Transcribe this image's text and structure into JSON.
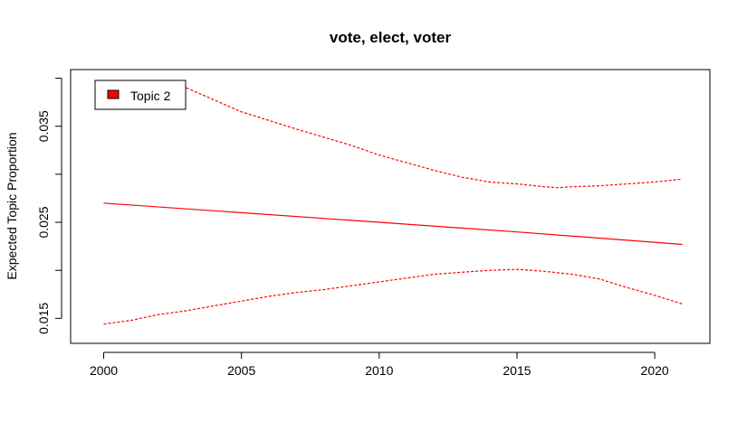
{
  "chart_data": {
    "type": "line",
    "title": "vote, elect, voter",
    "xlabel": "",
    "ylabel": "Expected Topic Proportion",
    "xlim": [
      1998.8,
      2022.0
    ],
    "ylim": [
      0.0124,
      0.0409
    ],
    "x_ticks": [
      2000,
      2005,
      2010,
      2015,
      2020
    ],
    "y_ticks": [
      0.015,
      0.02,
      0.025,
      0.03,
      0.035,
      0.04
    ],
    "y_tick_labels": [
      "0.015",
      "",
      "0.025",
      "",
      "0.035",
      ""
    ],
    "legend": {
      "position": "top-left",
      "entries": [
        "Topic 2"
      ]
    },
    "color": "#ff0000",
    "series": [
      {
        "name": "Topic 2",
        "style": "solid",
        "x": [
          2000,
          2005,
          2010,
          2015,
          2021
        ],
        "y": [
          0.027,
          0.026,
          0.025,
          0.024,
          0.0227
        ]
      },
      {
        "style": "dashed",
        "role": "upper-bound",
        "x": [
          2003,
          2005,
          2007,
          2009,
          2010,
          2011,
          2012,
          2013,
          2014,
          2015,
          2016,
          2016.5,
          2017,
          2018,
          2019,
          2020,
          2021
        ],
        "y": [
          0.039,
          0.0365,
          0.0347,
          0.033,
          0.032,
          0.0312,
          0.0304,
          0.0297,
          0.0292,
          0.029,
          0.0287,
          0.0286,
          0.0287,
          0.0288,
          0.029,
          0.0292,
          0.0295
        ]
      },
      {
        "style": "dashed",
        "role": "lower-bound",
        "x": [
          2000,
          2001,
          2002,
          2003,
          2004,
          2005,
          2006,
          2007,
          2008,
          2009,
          2010,
          2011,
          2012,
          2013,
          2014,
          2015,
          2016,
          2017,
          2018,
          2019,
          2020,
          2021
        ],
        "y": [
          0.0144,
          0.0148,
          0.0154,
          0.0158,
          0.0163,
          0.0168,
          0.0173,
          0.0177,
          0.018,
          0.0184,
          0.0188,
          0.0192,
          0.0196,
          0.0198,
          0.02,
          0.0201,
          0.0199,
          0.0196,
          0.0191,
          0.0182,
          0.0174,
          0.0165
        ]
      }
    ]
  }
}
